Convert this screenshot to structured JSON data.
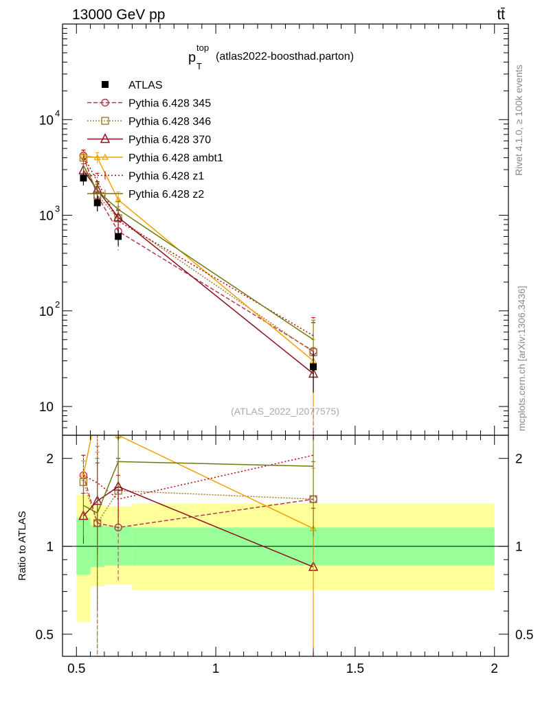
{
  "header": {
    "left": "13000 GeV pp",
    "right": "tt̄"
  },
  "title": {
    "main": "p",
    "sub": "T",
    "sup": "top",
    "rest": "(atlas2022-boosthad.parton)"
  },
  "side_labels": {
    "rivet": "Rivet 4.1.0, ≥ 100k events",
    "mcplots": "mcplots.cern.ch [arXiv:1306.3436]"
  },
  "watermark": "(ATLAS_2022_I2077575)",
  "ratio_ylabel": "Ratio to ATLAS",
  "colors": {
    "atlas": "#000000",
    "p345": "#b4364b",
    "p346": "#a07a32",
    "p370": "#8c0f1e",
    "ambt1": "#f0a000",
    "z1": "#b40000",
    "z2": "#6e7a0a",
    "band_inner": "#99ff99",
    "band_outer": "#ffff99"
  },
  "chart_data": [
    {
      "type": "line",
      "panel": "main",
      "yscale": "log",
      "xlim": [
        0.45,
        2.05
      ],
      "ylim": [
        5,
        100000
      ],
      "y_ticks": [
        {
          "v": 10,
          "base": "10",
          "exp": ""
        },
        {
          "v": 100,
          "base": "10",
          "exp": "2"
        },
        {
          "v": 1000,
          "base": "10",
          "exp": "3"
        },
        {
          "v": 10000,
          "base": "10",
          "exp": "4"
        }
      ],
      "x": [
        0.525,
        0.575,
        0.65,
        1.35
      ],
      "reference": {
        "name": "ATLAS",
        "values": [
          2450,
          1350,
          600,
          26
        ],
        "errors": [
          400,
          250,
          120,
          12
        ]
      },
      "series": [
        {
          "name": "Pythia 6.428 345",
          "key": "p345",
          "values": [
            4200,
            1600,
            680,
            38
          ],
          "errors": [
            600,
            500,
            250,
            38
          ]
        },
        {
          "name": "Pythia 6.428 346",
          "key": "p346",
          "values": [
            4000,
            1620,
            930,
            37
          ],
          "errors": [
            600,
            500,
            300,
            38
          ]
        },
        {
          "name": "Pythia 6.428 370",
          "key": "p370",
          "values": [
            2950,
            1850,
            950,
            22
          ],
          "errors": [
            500,
            400,
            200,
            12
          ]
        },
        {
          "name": "Pythia 6.428 ambt1",
          "key": "ambt1",
          "values": [
            4200,
            4000,
            1450,
            30
          ],
          "errors": [
            600,
            500,
            300,
            20
          ]
        },
        {
          "name": "Pythia 6.428 z1",
          "key": "z1",
          "values": [
            4200,
            2250,
            870,
            55
          ],
          "errors": [
            600,
            500,
            250,
            30
          ]
        },
        {
          "name": "Pythia 6.428 z2",
          "key": "z2",
          "values": [
            3300,
            1800,
            1150,
            50
          ],
          "errors": [
            500,
            400,
            250,
            30
          ]
        }
      ]
    },
    {
      "type": "line",
      "panel": "ratio",
      "yscale": "log",
      "xlim": [
        0.45,
        2.05
      ],
      "ylim": [
        0.42,
        2.4
      ],
      "ylabel": "Ratio to ATLAS",
      "x_ticks": [
        "0.5",
        "1",
        "1.5",
        "2"
      ],
      "x_tick_values": [
        0.5,
        1,
        1.5,
        2
      ],
      "y_ticks": [
        "0.5",
        "1",
        "2"
      ],
      "y_tick_values": [
        0.5,
        1,
        2
      ],
      "x": [
        0.525,
        0.575,
        0.65,
        1.35
      ],
      "bands": [
        {
          "x0": 0.5,
          "x1": 0.55,
          "inner": [
            0.8,
            1.25
          ],
          "outer": [
            0.55,
            1.5
          ]
        },
        {
          "x0": 0.55,
          "x1": 0.6,
          "inner": [
            0.85,
            1.18
          ],
          "outer": [
            0.73,
            1.38
          ]
        },
        {
          "x0": 0.6,
          "x1": 0.7,
          "inner": [
            0.86,
            1.17
          ],
          "outer": [
            0.74,
            1.37
          ]
        },
        {
          "x0": 0.7,
          "x1": 2.0,
          "inner": [
            0.86,
            1.16
          ],
          "outer": [
            0.71,
            1.4
          ]
        }
      ],
      "series": [
        {
          "name": "Pythia 6.428 345",
          "key": "p345",
          "values": [
            1.75,
            1.2,
            1.16,
            1.45
          ],
          "errors": [
            0.3,
            1.0,
            0.4,
            0.5
          ]
        },
        {
          "name": "Pythia 6.428 346",
          "key": "p346",
          "values": [
            1.66,
            1.2,
            1.55,
            1.45
          ],
          "errors": [
            0.3,
            0.9,
            0.4,
            0.5
          ]
        },
        {
          "name": "Pythia 6.428 370",
          "key": "p370",
          "values": [
            1.27,
            1.43,
            1.6,
            0.85
          ],
          "errors": [
            0.25,
            0.5,
            0.4,
            0.5
          ]
        },
        {
          "name": "Pythia 6.428 ambt1",
          "key": "ambt1",
          "values": [
            1.75,
            3.0,
            2.4,
            1.15
          ],
          "errors": [
            0.3,
            1.0,
            0.4,
            0.7
          ]
        },
        {
          "name": "Pythia 6.428 z1",
          "key": "z1",
          "values": [
            1.75,
            1.65,
            1.45,
            2.05
          ],
          "errors": [
            0.3,
            0.8,
            0.3,
            0.8
          ]
        },
        {
          "name": "Pythia 6.428 z2",
          "key": "z2",
          "values": [
            1.38,
            1.3,
            1.95,
            1.88
          ],
          "errors": [
            0.3,
            0.7,
            0.4,
            0.8
          ]
        }
      ]
    }
  ]
}
